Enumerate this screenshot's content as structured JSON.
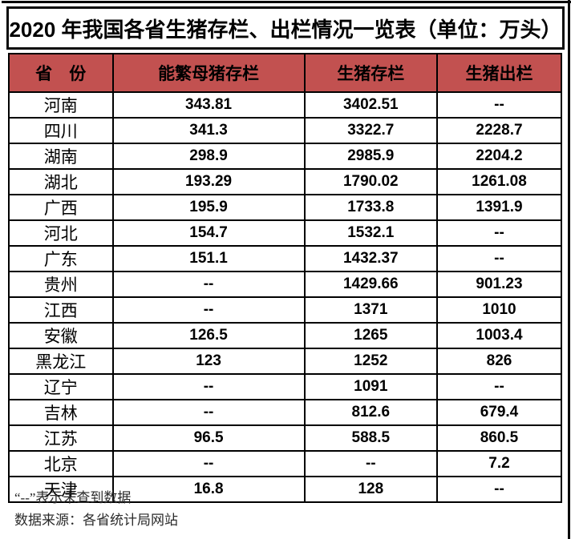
{
  "title": "2020 年我国各省生猪存栏、出栏情况一览表（单位：万头）",
  "table": {
    "columns": [
      "省　份",
      "能繁母猪存栏",
      "生猪存栏",
      "生猪出栏"
    ],
    "rows": [
      {
        "province": "河南",
        "sow_stock": "343.81",
        "pig_stock": "3402.51",
        "pig_out": "--"
      },
      {
        "province": "四川",
        "sow_stock": "341.3",
        "pig_stock": "3322.7",
        "pig_out": "2228.7"
      },
      {
        "province": "湖南",
        "sow_stock": "298.9",
        "pig_stock": "2985.9",
        "pig_out": "2204.2"
      },
      {
        "province": "湖北",
        "sow_stock": "193.29",
        "pig_stock": "1790.02",
        "pig_out": "1261.08"
      },
      {
        "province": "广西",
        "sow_stock": "195.9",
        "pig_stock": "1733.8",
        "pig_out": "1391.9"
      },
      {
        "province": "河北",
        "sow_stock": "154.7",
        "pig_stock": "1532.1",
        "pig_out": "--"
      },
      {
        "province": "广东",
        "sow_stock": "151.1",
        "pig_stock": "1432.37",
        "pig_out": "--"
      },
      {
        "province": "贵州",
        "sow_stock": "--",
        "pig_stock": "1429.66",
        "pig_out": "901.23"
      },
      {
        "province": "江西",
        "sow_stock": "--",
        "pig_stock": "1371",
        "pig_out": "1010"
      },
      {
        "province": "安徽",
        "sow_stock": "126.5",
        "pig_stock": "1265",
        "pig_out": "1003.4"
      },
      {
        "province": "黑龙江",
        "sow_stock": "123",
        "pig_stock": "1252",
        "pig_out": "826"
      },
      {
        "province": "辽宁",
        "sow_stock": "--",
        "pig_stock": "1091",
        "pig_out": "--"
      },
      {
        "province": "吉林",
        "sow_stock": "--",
        "pig_stock": "812.6",
        "pig_out": "679.4"
      },
      {
        "province": "江苏",
        "sow_stock": "96.5",
        "pig_stock": "588.5",
        "pig_out": "860.5"
      },
      {
        "province": "北京",
        "sow_stock": "--",
        "pig_stock": "--",
        "pig_out": "7.2"
      },
      {
        "province": "天津",
        "sow_stock": "16.8",
        "pig_stock": "128",
        "pig_out": "--"
      }
    ]
  },
  "footnotes": [
    "“--”表示未查到数据",
    "数据来源：各省统计局网站"
  ],
  "colors": {
    "header_bg": "#C25150",
    "table_border": "#000000",
    "title_text": "#000000"
  }
}
